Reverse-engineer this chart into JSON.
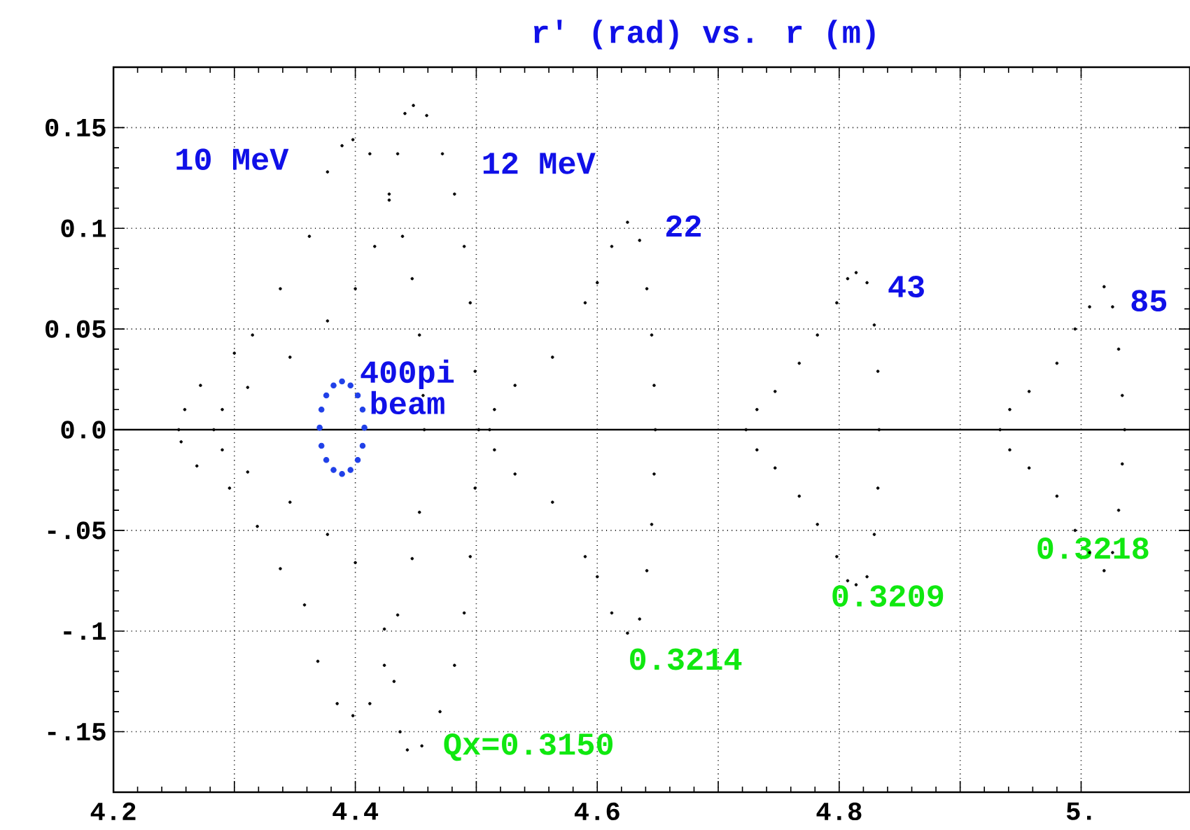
{
  "chart_data": {
    "type": "scatter",
    "title": "r′ (rad)   vs.   r (m)",
    "xlim": [
      4.2,
      5.09
    ],
    "ylim": [
      -0.18,
      0.18
    ],
    "xticks": [
      4.2,
      {
        "value": 4.3,
        "label": null
      },
      4.4,
      {
        "value": 4.5,
        "label": null
      },
      4.6,
      {
        "value": 4.7,
        "label": null
      },
      4.8,
      {
        "value": 4.9,
        "label": null
      },
      {
        "value": 5.0,
        "label": "5."
      }
    ],
    "yticks": [
      {
        "value": -0.15,
        "label": "-.15"
      },
      {
        "value": -0.1,
        "label": "-.1"
      },
      {
        "value": -0.05,
        "label": "-.05"
      },
      {
        "value": 0,
        "label": "0.0"
      },
      0.05,
      0.1,
      0.15
    ],
    "grid": true,
    "ref_lines": [
      {
        "axis": "y",
        "value": 0,
        "color": "#000000"
      }
    ],
    "series": [
      {
        "color": "#000000",
        "x": [
          4.254,
          4.259,
          4.272,
          4.3,
          4.315,
          4.338,
          4.362,
          4.377,
          4.389,
          4.398,
          4.412,
          4.428,
          4.439,
          4.447,
          4.453,
          4.456,
          4.457,
          4.453,
          4.447,
          4.435,
          4.424,
          4.412,
          4.398,
          4.385,
          4.369,
          4.358,
          4.338,
          4.319,
          4.296,
          4.269,
          4.256
        ],
        "values": [
          0,
          0.01,
          0.022,
          0.038,
          0.047,
          0.07,
          0.096,
          0.128,
          0.141,
          0.144,
          0.137,
          0.117,
          0.096,
          0.075,
          0.047,
          0.017,
          0,
          -0.041,
          -0.064,
          -0.092,
          -0.117,
          -0.136,
          -0.142,
          -0.136,
          -0.115,
          -0.087,
          -0.069,
          -0.048,
          -0.029,
          -0.018,
          -0.006
        ]
      },
      {
        "color": "#000000",
        "x": [
          4.283,
          4.29,
          4.311,
          4.346,
          4.377,
          4.4,
          4.416,
          4.428,
          4.435,
          4.441,
          4.448,
          4.459,
          4.472,
          4.482,
          4.49,
          4.495,
          4.499,
          4.502,
          4.499,
          4.495,
          4.49,
          4.482,
          4.47,
          4.455,
          4.443,
          4.437,
          4.432,
          4.424,
          4.4,
          4.377,
          4.346,
          4.311,
          4.29
        ],
        "values": [
          0,
          0.01,
          0.021,
          0.036,
          0.054,
          0.07,
          0.091,
          0.114,
          0.137,
          0.157,
          0.161,
          0.156,
          0.137,
          0.117,
          0.091,
          0.063,
          0.029,
          0,
          -0.029,
          -0.063,
          -0.091,
          -0.117,
          -0.14,
          -0.157,
          -0.159,
          -0.15,
          -0.125,
          -0.099,
          -0.066,
          -0.052,
          -0.036,
          -0.021,
          -0.01
        ]
      },
      {
        "color": "#000000",
        "x": [
          4.511,
          4.515,
          4.532,
          4.563,
          4.59,
          4.6,
          4.612,
          4.625,
          4.635,
          4.641,
          4.645,
          4.647,
          4.648,
          4.647,
          4.645,
          4.641,
          4.635,
          4.625,
          4.612,
          4.6,
          4.59,
          4.563,
          4.532,
          4.515
        ],
        "values": [
          0,
          0.01,
          0.022,
          0.036,
          0.063,
          0.073,
          0.091,
          0.103,
          0.094,
          0.07,
          0.047,
          0.022,
          0,
          -0.022,
          -0.047,
          -0.07,
          -0.094,
          -0.101,
          -0.091,
          -0.073,
          -0.063,
          -0.036,
          -0.022,
          -0.01
        ]
      },
      {
        "color": "#000000",
        "x": [
          4.723,
          4.732,
          4.747,
          4.767,
          4.782,
          4.798,
          4.807,
          4.814,
          4.823,
          4.829,
          4.832,
          4.833,
          4.832,
          4.829,
          4.823,
          4.814,
          4.807,
          4.798,
          4.782,
          4.767,
          4.747,
          4.732
        ],
        "values": [
          0,
          0.01,
          0.019,
          0.033,
          0.047,
          0.063,
          0.075,
          0.078,
          0.073,
          0.052,
          0.029,
          0,
          -0.029,
          -0.052,
          -0.073,
          -0.077,
          -0.075,
          -0.063,
          -0.047,
          -0.033,
          -0.019,
          -0.01
        ]
      },
      {
        "color": "#000000",
        "x": [
          4.933,
          4.941,
          4.957,
          4.98,
          4.995,
          5.007,
          5.019,
          5.026,
          5.031,
          5.034,
          5.036,
          5.034,
          5.031,
          5.026,
          5.019,
          5.007,
          4.995,
          4.98,
          4.957,
          4.941
        ],
        "values": [
          0,
          0.01,
          0.019,
          0.033,
          0.05,
          0.061,
          0.071,
          0.061,
          0.04,
          0.017,
          0,
          -0.017,
          -0.04,
          -0.061,
          -0.07,
          -0.061,
          -0.05,
          -0.033,
          -0.019,
          -0.01
        ]
      },
      {
        "color": "#2040e8",
        "x": [
          4.4075,
          4.406,
          4.402,
          4.396,
          4.389,
          4.382,
          4.376,
          4.372,
          4.3705,
          4.372,
          4.376,
          4.382,
          4.389,
          4.396,
          4.402,
          4.406
        ],
        "values": [
          0.001,
          0.01,
          0.017,
          0.022,
          0.024,
          0.022,
          0.017,
          0.01,
          0.001,
          -0.008,
          -0.015,
          -0.02,
          -0.022,
          -0.02,
          -0.015,
          -0.008
        ]
      }
    ],
    "annotations": [
      {
        "text": "10 MeV",
        "x": 4.398,
        "y": 0.144
      },
      {
        "text": "12 MeV",
        "x": 4.448,
        "y": 0.161
      },
      {
        "text": "22",
        "x": 4.625,
        "y": 0.103
      },
      {
        "text": "43",
        "x": 4.814,
        "y": 0.078
      },
      {
        "text": "85",
        "x": 5.019,
        "y": 0.071
      },
      {
        "text": "400pi beam",
        "x": 4.389,
        "y": 0.024
      },
      {
        "text": "Qx=0.3150",
        "x": 4.443,
        "y": -0.159
      },
      {
        "text": "0.3214",
        "x": 4.625,
        "y": -0.101
      },
      {
        "text": "0.3209",
        "x": 4.814,
        "y": -0.077
      },
      {
        "text": "0.3218",
        "x": 5.019,
        "y": -0.07
      }
    ]
  }
}
